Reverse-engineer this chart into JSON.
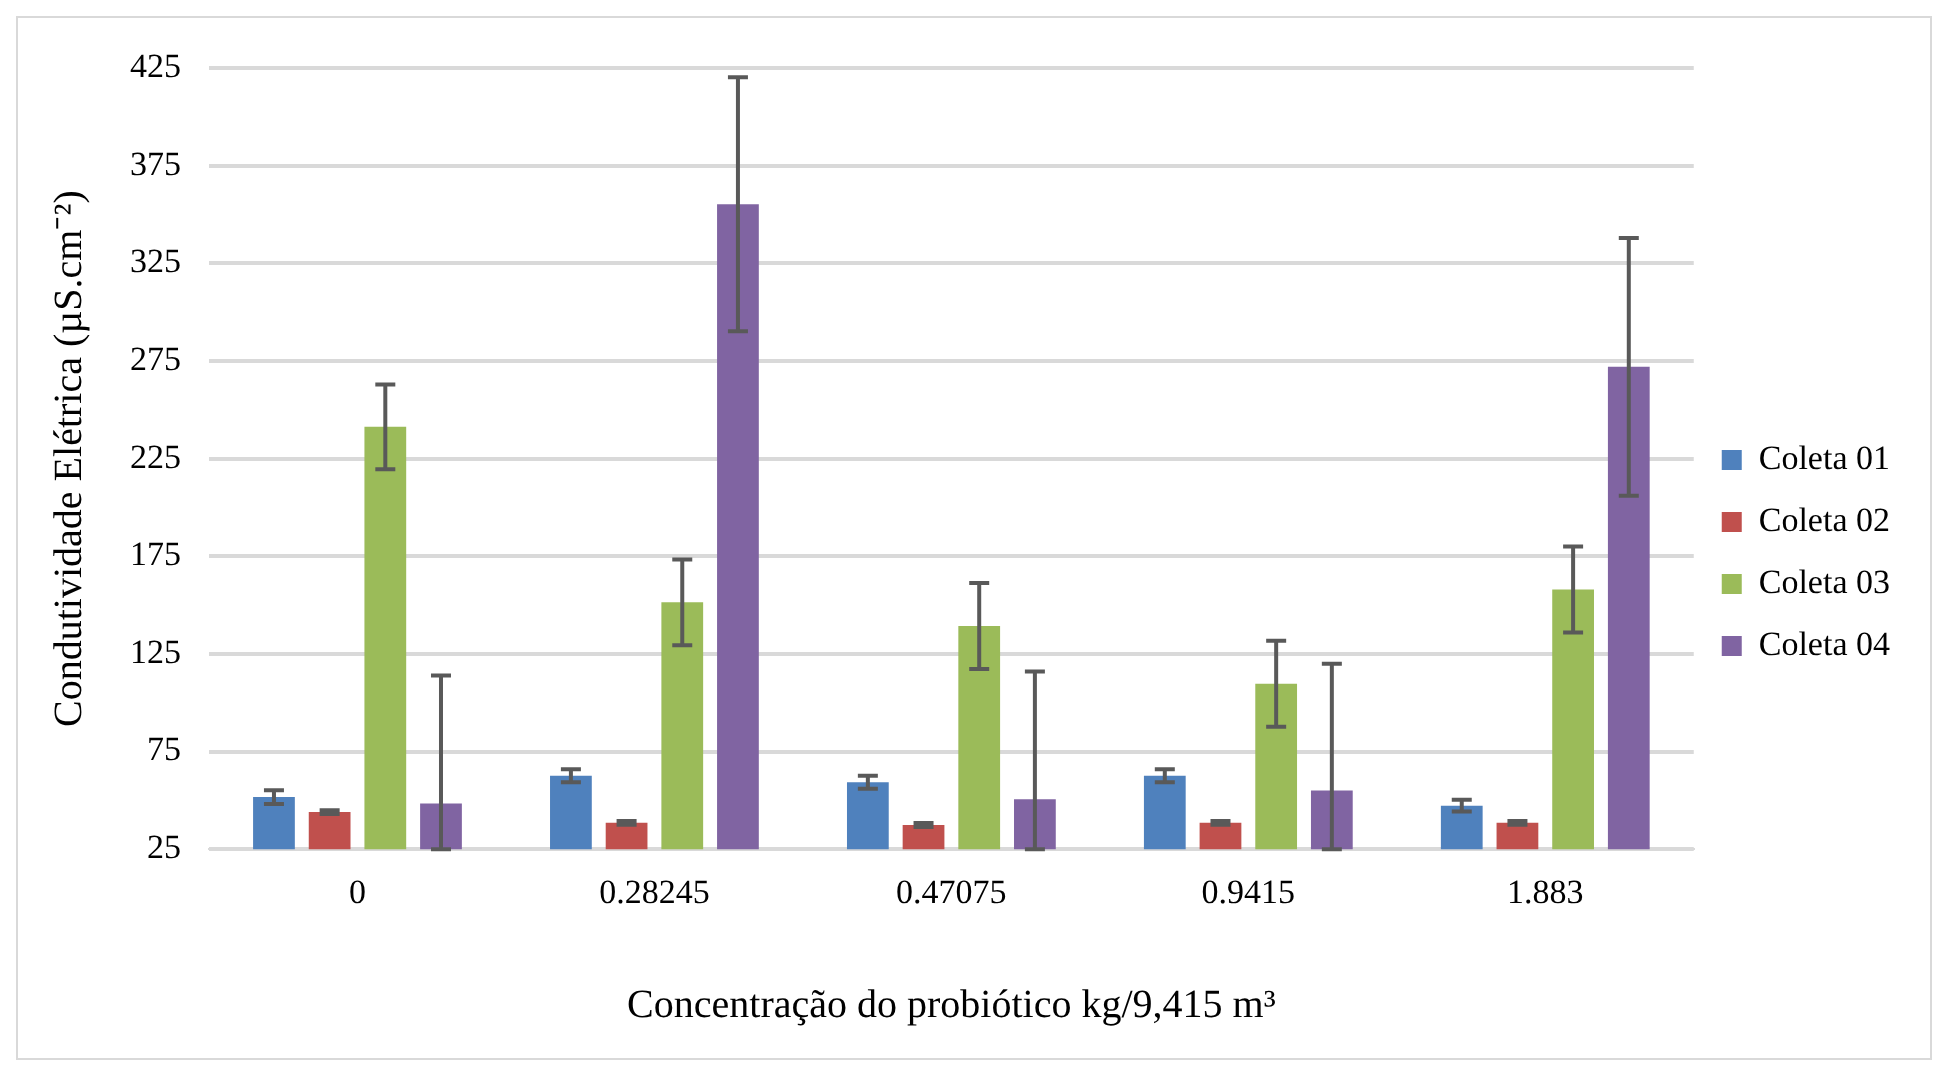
{
  "chart_data": {
    "type": "bar",
    "xlabel": "Concentração do probiótico kg/9,415 m³",
    "ylabel": "Condutividade Elétrica (µS.cm⁻²)",
    "categories": [
      "0",
      "0.28245",
      "0.47075",
      "0.9415",
      "1.883"
    ],
    "series": [
      {
        "name": "Coleta 01",
        "color": "#4f81bd",
        "values": [
          51.7,
          62.6,
          59.3,
          62.6,
          47.3
        ],
        "errors": [
          3.5,
          3.3,
          3.3,
          3.3,
          3
        ]
      },
      {
        "name": "Coleta 02",
        "color": "#c0504d",
        "values": [
          44,
          38.5,
          37.4,
          38.5,
          38.5
        ],
        "errors": [
          1,
          1,
          1,
          1,
          1
        ]
      },
      {
        "name": "Coleta 03",
        "color": "#9bbb59",
        "values": [
          241.3,
          151.4,
          139.3,
          109.7,
          158
        ],
        "errors": [
          21.7,
          22,
          22,
          22,
          22
        ]
      },
      {
        "name": "Coleta 04",
        "color": "#8064a2",
        "values": [
          48.4,
          355.2,
          50.6,
          55,
          272
        ],
        "errors": [
          [
            25,
            114
          ],
          65,
          [
            25,
            116
          ],
          [
            25,
            120
          ],
          66
        ]
      }
    ],
    "ylim": [
      25,
      425
    ],
    "yticks": [
      25,
      75,
      125,
      175,
      225,
      275,
      325,
      375,
      425
    ],
    "grid": "y",
    "legend": "right"
  }
}
